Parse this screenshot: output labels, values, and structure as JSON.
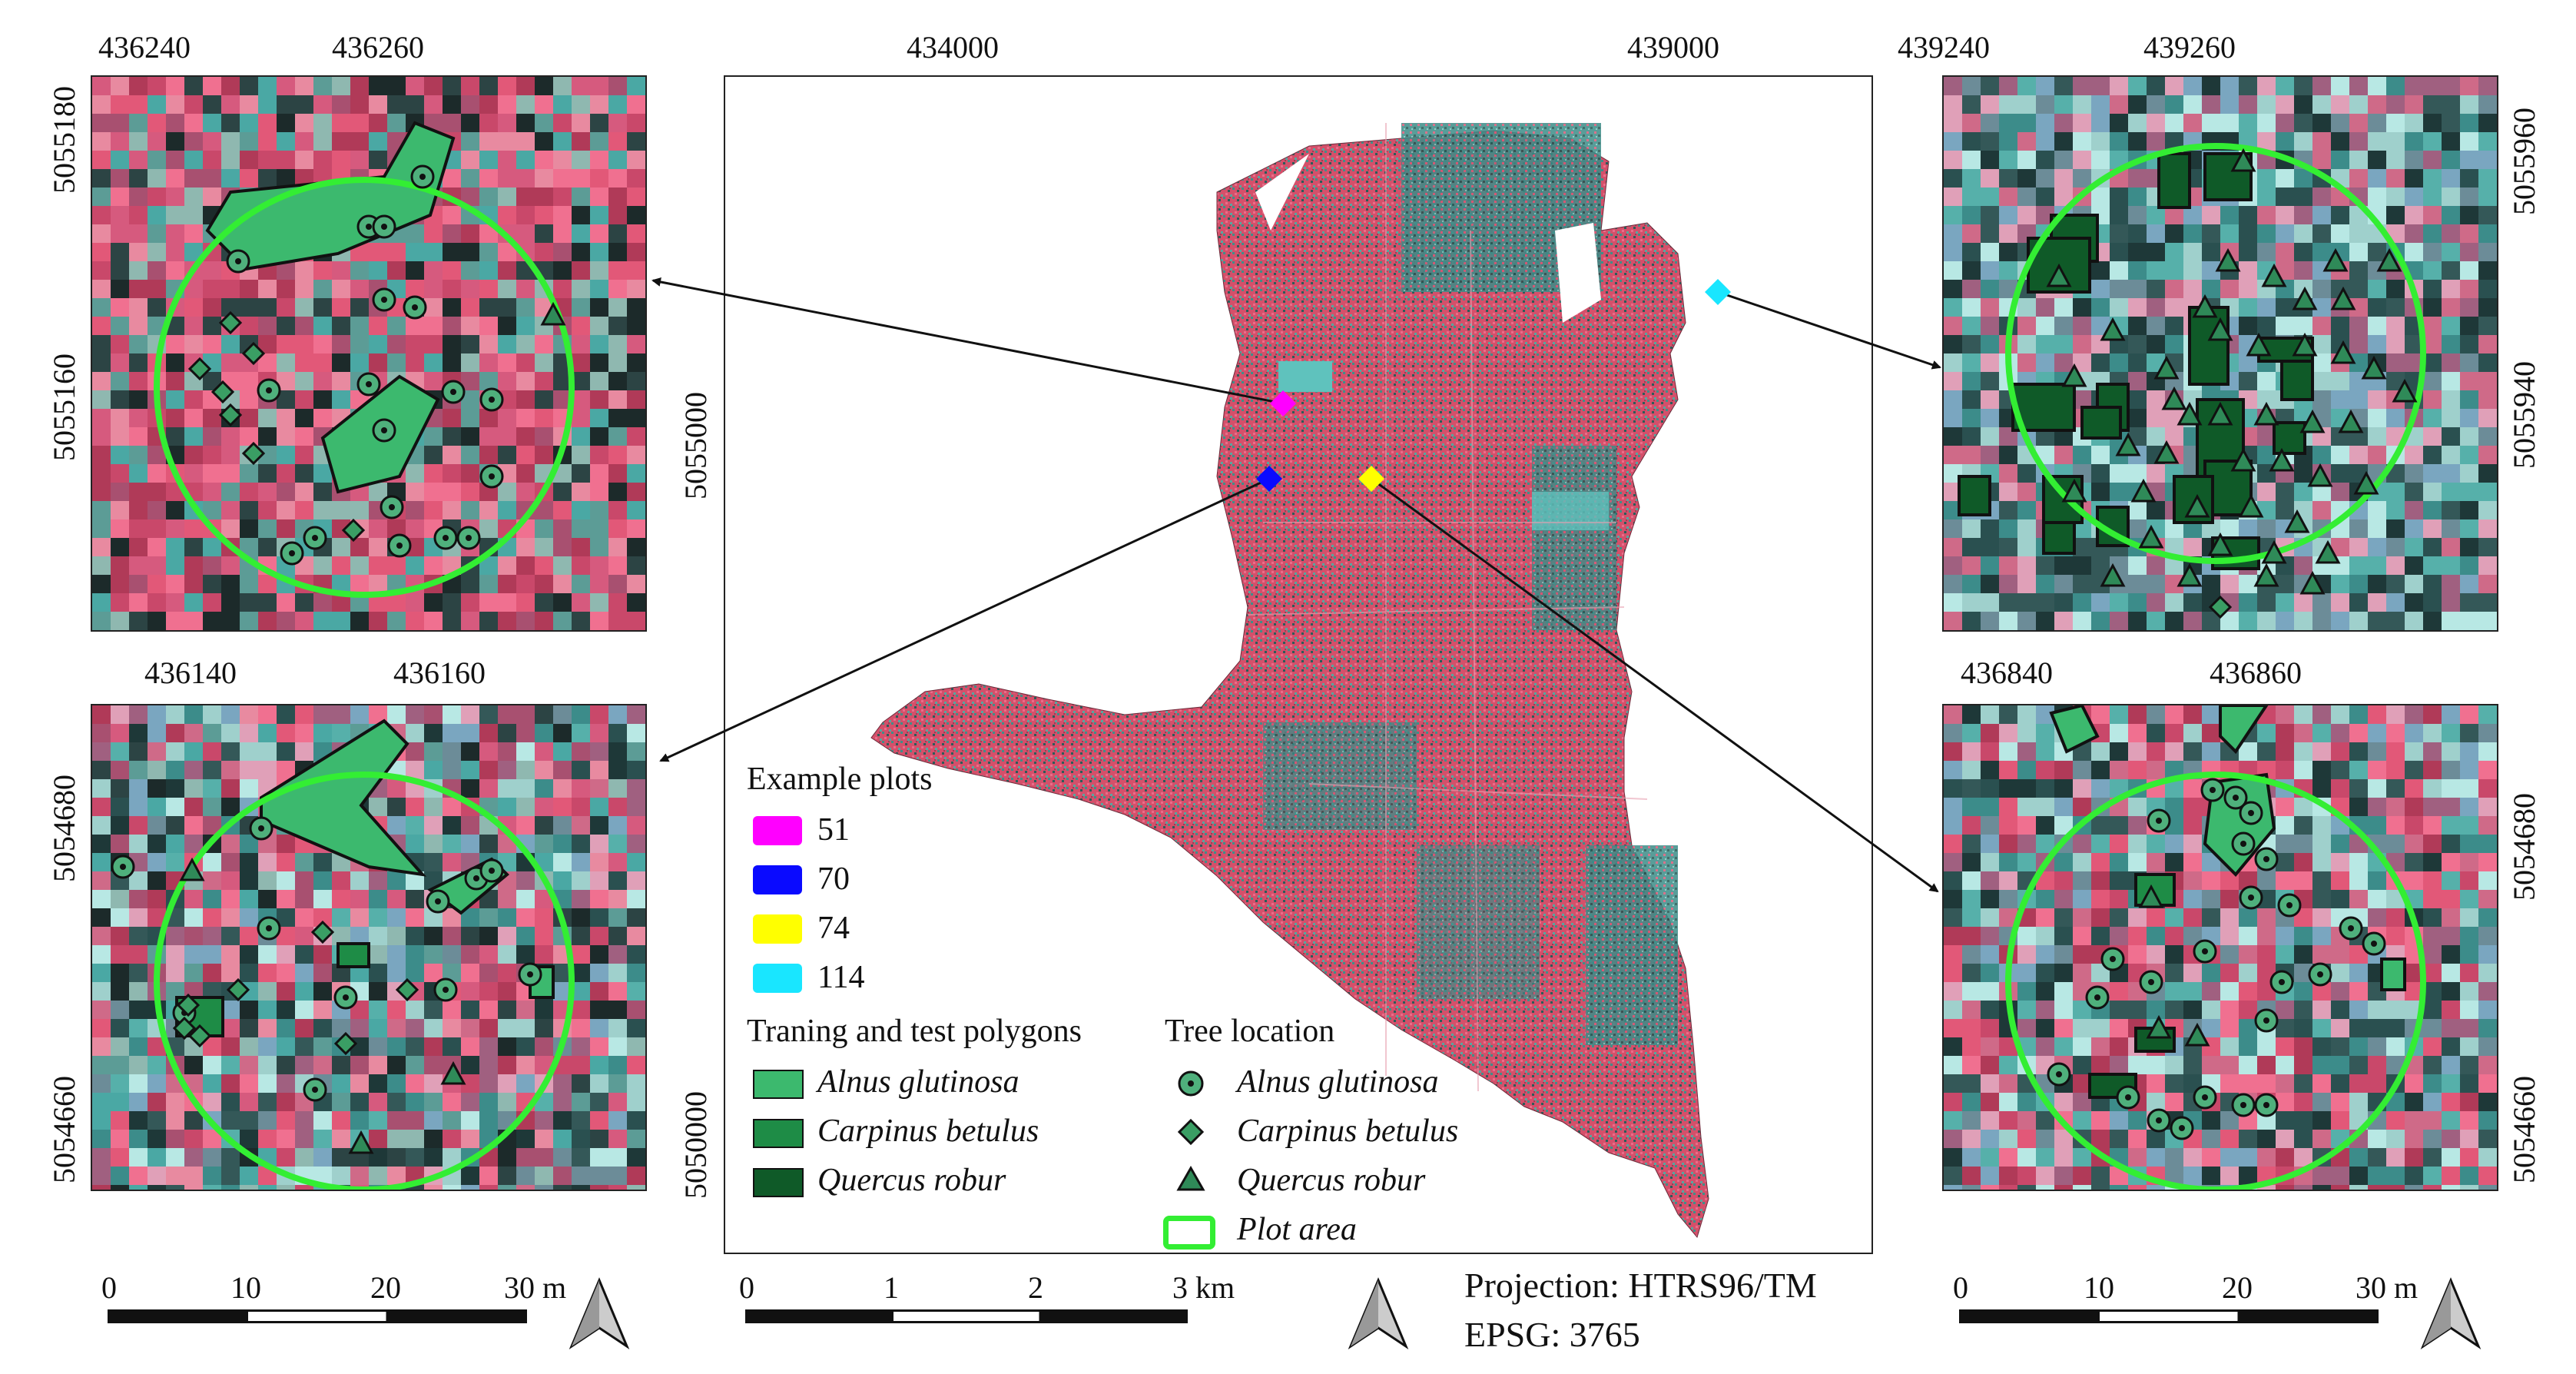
{
  "panels": {
    "top_left": {
      "x_ticks": [
        "436240",
        "436260"
      ],
      "y_ticks": [
        "5055180",
        "5055160"
      ],
      "plot_ref": "51"
    },
    "bottom_left": {
      "x_ticks": [
        "436140",
        "436160"
      ],
      "y_ticks": [
        "5054680",
        "5054660"
      ],
      "plot_ref": "70"
    },
    "center": {
      "x_ticks": [
        "434000",
        "439000"
      ],
      "y_ticks": [
        "5055000",
        "5050000"
      ]
    },
    "top_right": {
      "x_ticks": [
        "439240",
        "439260"
      ],
      "y_ticks": [
        "5055960",
        "5055940"
      ],
      "plot_ref": "114"
    },
    "bottom_right": {
      "x_ticks": [
        "436840",
        "436860"
      ],
      "y_ticks": [
        "5054680",
        "5054660"
      ],
      "plot_ref": "74"
    }
  },
  "legend": {
    "example_plots_title": "Example plots",
    "plots": [
      {
        "label": "51",
        "color": "#ff00ff"
      },
      {
        "label": "70",
        "color": "#0a0aff"
      },
      {
        "label": "74",
        "color": "#ffff00"
      },
      {
        "label": "114",
        "color": "#19e6ff"
      }
    ],
    "polygons_title": "Traning and test polygons",
    "polygons": [
      {
        "label": "Alnus glutinosa",
        "color": "#3cb96e"
      },
      {
        "label": "Carpinus betulus",
        "color": "#1e8c46"
      },
      {
        "label": "Quercus robur",
        "color": "#0f5a28"
      }
    ],
    "tree_title": "Tree location",
    "trees": [
      {
        "label": "Alnus glutinosa",
        "symbol": "circle"
      },
      {
        "label": "Carpinus betulus",
        "symbol": "diamond"
      },
      {
        "label": "Quercus robur",
        "symbol": "triangle"
      }
    ],
    "plot_area_label": "Plot area",
    "plot_area_color": "#33ee33"
  },
  "scalebars": {
    "plot_ticks": [
      "0",
      "10",
      "20",
      "30 m"
    ],
    "main_ticks": [
      "0",
      "1",
      "2",
      "3 km"
    ]
  },
  "projection": {
    "line1": "Projection: HTRS96/TM",
    "line2": "EPSG: 3765"
  },
  "icons": [
    "north-arrow-icon"
  ],
  "colors": {
    "raster_pink": "#e05a78",
    "raster_teal": "#4ab0a8",
    "plot_circle": "#33ee33"
  }
}
